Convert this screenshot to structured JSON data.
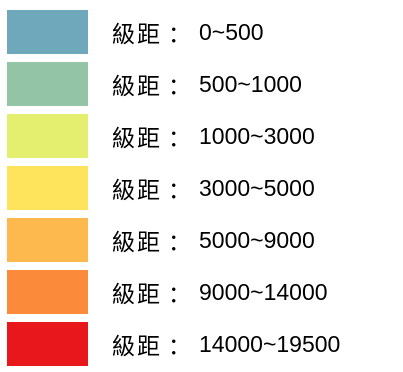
{
  "legend": {
    "items": [
      {
        "label": "級距",
        "separator": "：",
        "range": "0~500",
        "color": "#6fa8bb"
      },
      {
        "label": "級距",
        "separator": "：",
        "range": "500~1000",
        "color": "#93c4a6"
      },
      {
        "label": "級距",
        "separator": "：",
        "range": "1000~3000",
        "color": "#e4ef70"
      },
      {
        "label": "級距",
        "separator": "：",
        "range": "3000~5000",
        "color": "#fde45c"
      },
      {
        "label": "級距",
        "separator": "：",
        "range": "5000~9000",
        "color": "#fdb84e"
      },
      {
        "label": "級距",
        "separator": "：",
        "range": "9000~14000",
        "color": "#fb8a3b"
      },
      {
        "label": "級距",
        "separator": "：",
        "range": "14000~19500",
        "color": "#e8171b"
      }
    ]
  }
}
